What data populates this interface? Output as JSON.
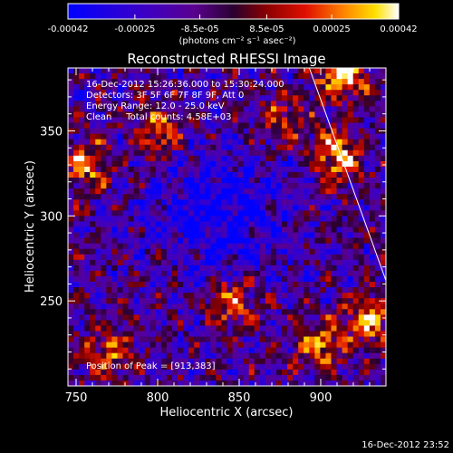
{
  "chart_data": {
    "type": "heatmap",
    "title": "Reconstructed RHESSI Image",
    "xlabel": "Heliocentric X (arcsec)",
    "ylabel": "Heliocentric Y (arcsec)",
    "xlim": [
      745,
      940
    ],
    "ylim": [
      200,
      387
    ],
    "x_ticks": [
      750,
      800,
      850,
      900
    ],
    "y_ticks": [
      250,
      300,
      350
    ],
    "colorbar": {
      "colormap": "red-temperature (blue-black-red-yellow-white)",
      "range": [
        -0.00042,
        0.00042
      ],
      "tick_labels": [
        "-0.00042",
        "-0.00025",
        "-8.5e-05",
        "8.5e-05",
        "0.00025",
        "0.00042"
      ],
      "tick_values": [
        -0.00042,
        -0.00025,
        -8.5e-05,
        8.5e-05,
        0.00025,
        0.00042
      ],
      "unit_label": "(photons cm⁻² s⁻¹ asec⁻²)"
    },
    "annotations": [
      "16-Dec-2012 15:26:36.000 to 15:30:24.000",
      "Detectors: 3F 5F 6F 7F 8F 9F, Att 0",
      "Energy Range: 12.0 - 25.0 keV",
      "Clean     Total counts: 4.58E+03",
      "Position of Peak = [913,383]"
    ],
    "peak_position": [
      913,
      383
    ],
    "limb_line": {
      "x": [
        893,
        940
      ],
      "y": [
        387,
        262
      ]
    },
    "bright_sources": [
      {
        "x": 913,
        "y": 383,
        "strength": 1.0
      },
      {
        "x": 910,
        "y": 335,
        "strength": 0.9
      },
      {
        "x": 845,
        "y": 250,
        "strength": 0.75
      },
      {
        "x": 757,
        "y": 330,
        "strength": 0.7
      },
      {
        "x": 800,
        "y": 350,
        "strength": 0.65
      },
      {
        "x": 900,
        "y": 225,
        "strength": 0.7
      },
      {
        "x": 770,
        "y": 220,
        "strength": 0.6
      },
      {
        "x": 875,
        "y": 355,
        "strength": 0.55
      },
      {
        "x": 930,
        "y": 240,
        "strength": 0.7
      }
    ],
    "dim_region": {
      "x": 840,
      "y": 300,
      "strength": -0.6
    }
  },
  "footer_date": "16-Dec-2012 23:52"
}
